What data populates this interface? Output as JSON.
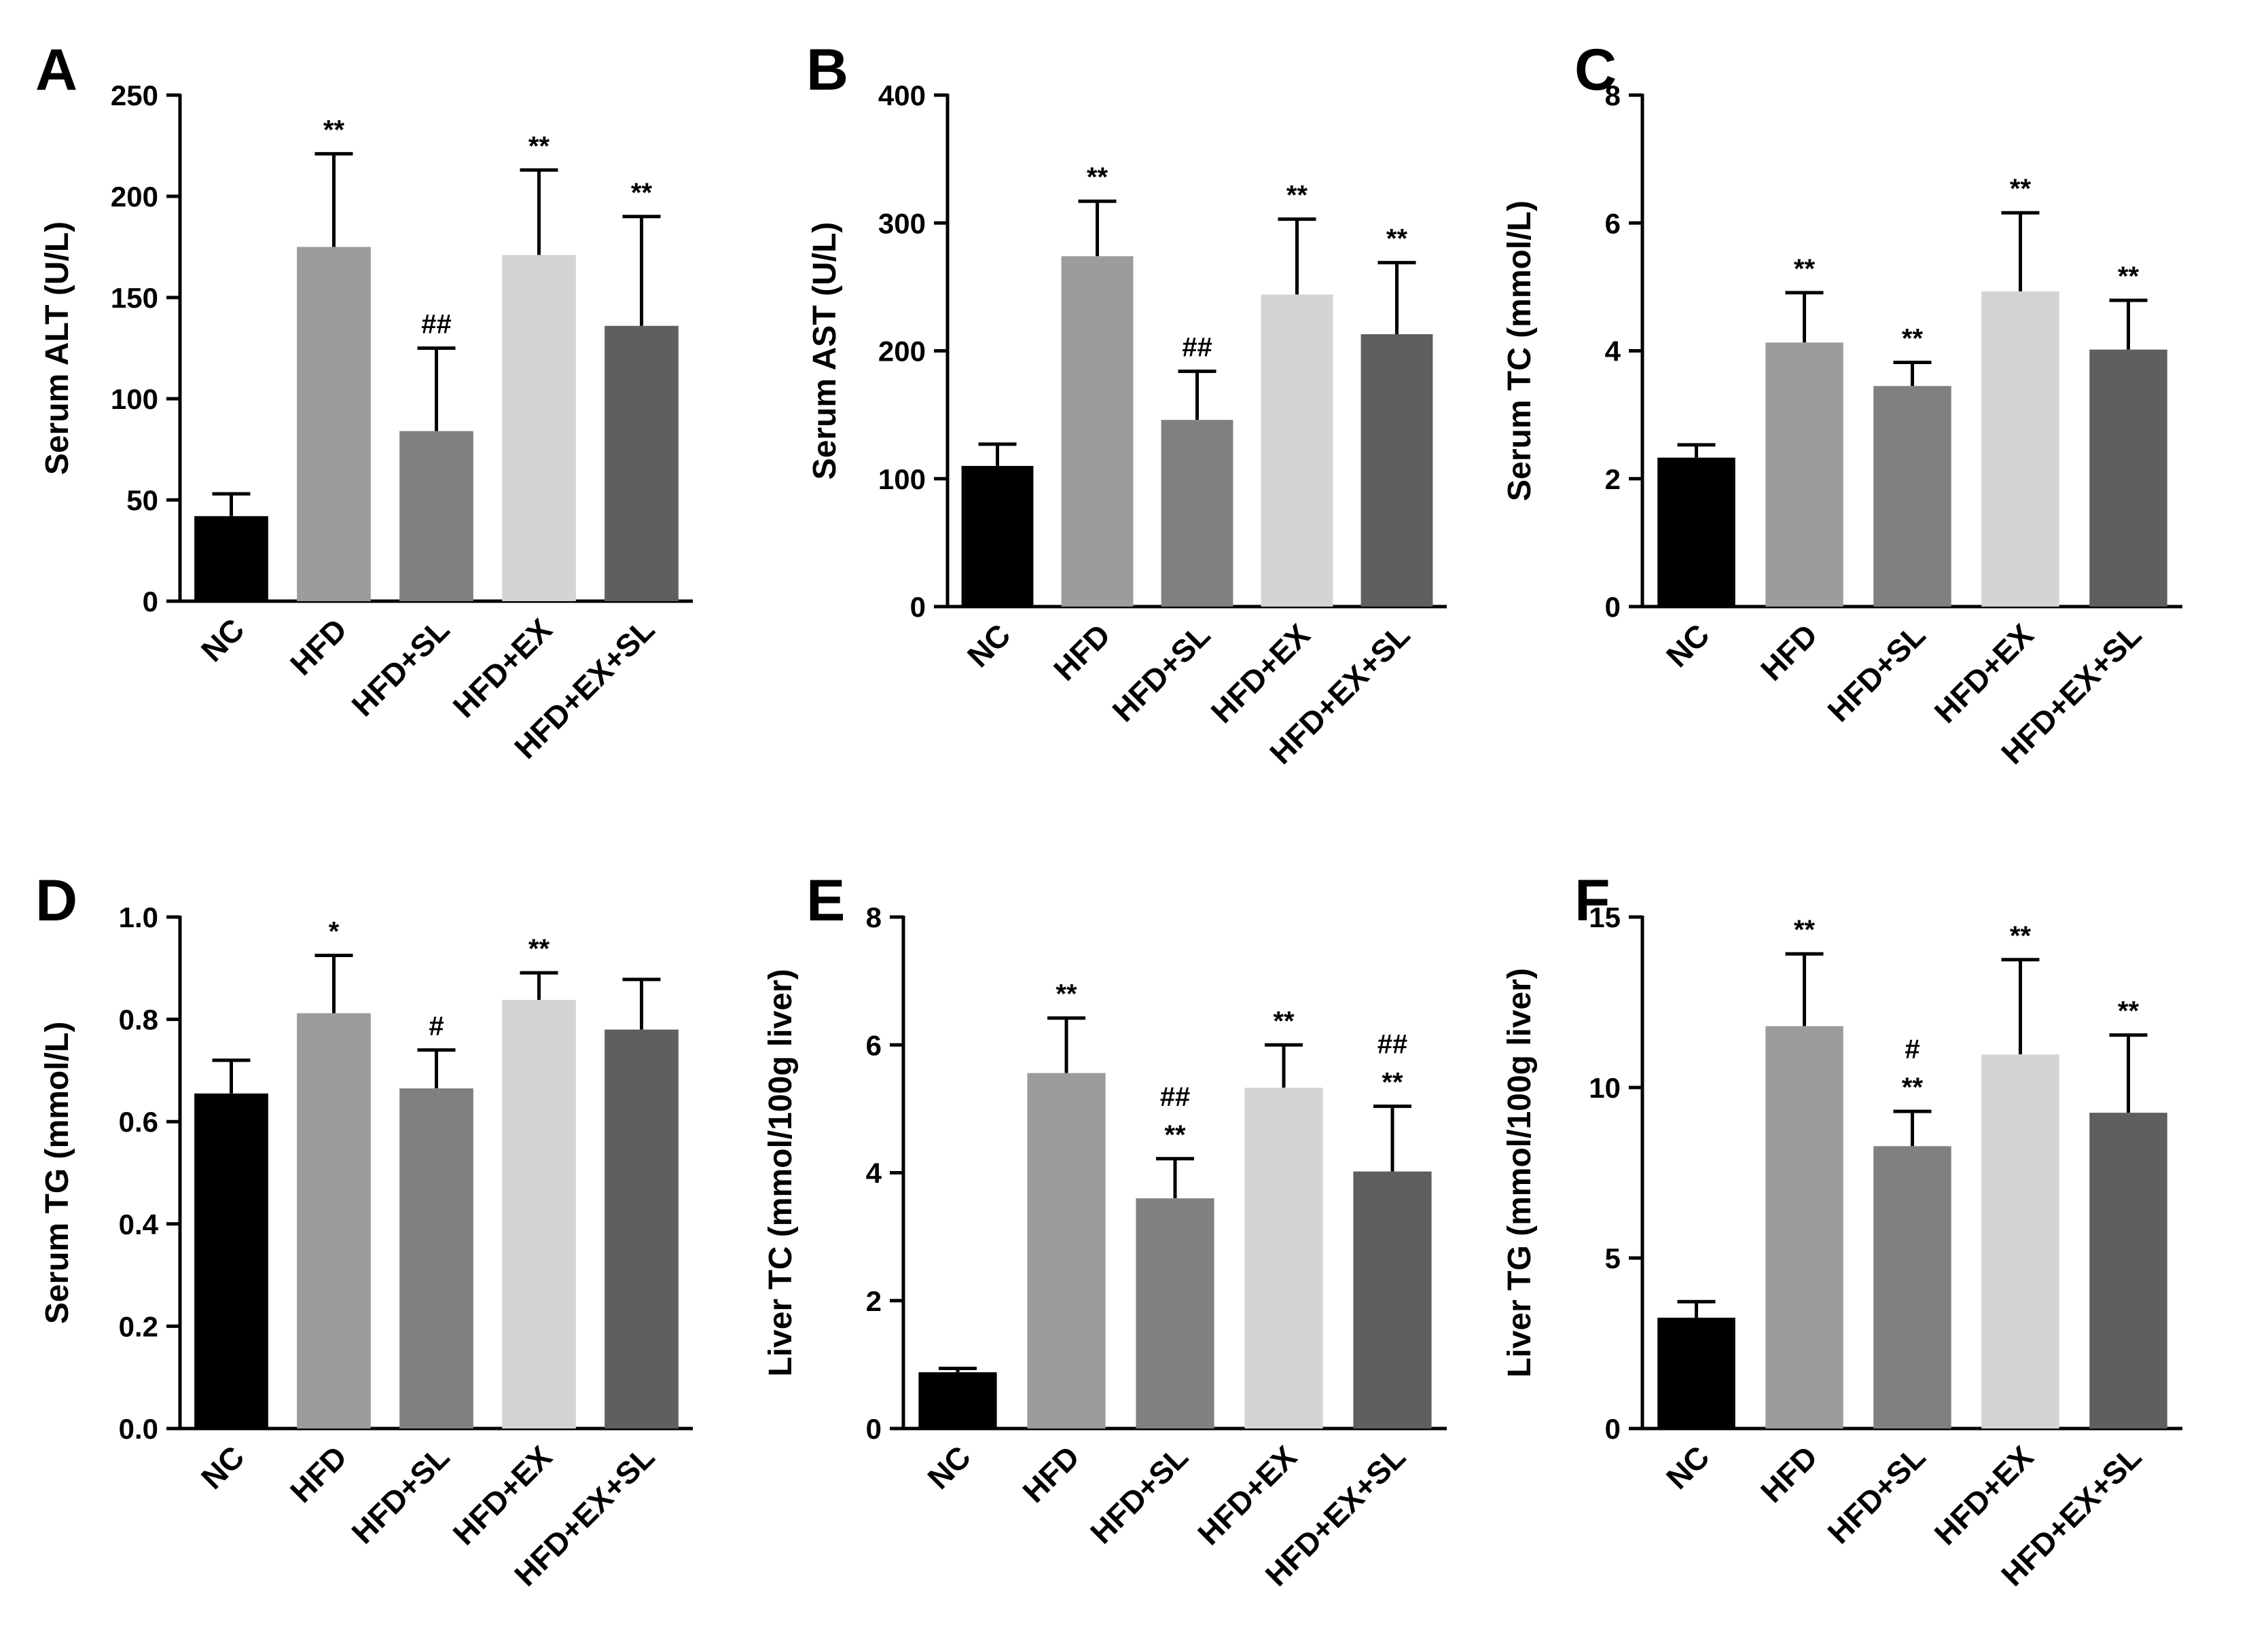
{
  "colors": {
    "axis": "#000000",
    "bar_NC": "#000000",
    "bar_HFD": "#9c9c9c",
    "bar_HFD_SL": "#808080",
    "bar_HFD_EX": "#d4d4d4",
    "bar_HFD_EX_SL": "#5f5f5f"
  },
  "chart_data": [
    {
      "panel": "A",
      "type": "bar",
      "ylabel": "Serum ALT (U/L)",
      "ylim": [
        0,
        250
      ],
      "ticks": [
        0,
        50,
        100,
        150,
        200,
        250
      ],
      "tick_labels": [
        "0",
        "50",
        "100",
        "150",
        "200",
        "250"
      ],
      "categories": [
        "NC",
        "HFD",
        "HFD+SL",
        "HFD+EX",
        "HFD+EX+SL"
      ],
      "values": [
        42,
        175,
        84,
        171,
        136
      ],
      "errors": [
        11,
        46,
        41,
        42,
        54
      ],
      "annotations": [
        "",
        "**",
        "##",
        "**",
        "**"
      ]
    },
    {
      "panel": "B",
      "type": "bar",
      "ylabel": "Serum AST (U/L)",
      "ylim": [
        0,
        400
      ],
      "ticks": [
        0,
        100,
        200,
        300,
        400
      ],
      "tick_labels": [
        "0",
        "100",
        "200",
        "300",
        "400"
      ],
      "categories": [
        "NC",
        "HFD",
        "HFD+SL",
        "HFD+EX",
        "HFD+EX+SL"
      ],
      "values": [
        110,
        274,
        146,
        244,
        213
      ],
      "errors": [
        17,
        43,
        38,
        59,
        56
      ],
      "annotations": [
        "",
        "**",
        "##",
        "**",
        "**"
      ]
    },
    {
      "panel": "C",
      "type": "bar",
      "ylabel": "Serum TC (mmol/L)",
      "ylim": [
        0,
        8
      ],
      "ticks": [
        0,
        2,
        4,
        6,
        8
      ],
      "tick_labels": [
        "0",
        "2",
        "4",
        "6",
        "8"
      ],
      "categories": [
        "NC",
        "HFD",
        "HFD+SL",
        "HFD+EX",
        "HFD+EX+SL"
      ],
      "values": [
        2.33,
        4.13,
        3.45,
        4.93,
        4.02
      ],
      "errors": [
        0.2,
        0.78,
        0.37,
        1.23,
        0.77
      ],
      "annotations": [
        "",
        "**",
        "**",
        "**",
        "**"
      ]
    },
    {
      "panel": "D",
      "type": "bar",
      "ylabel": "Serum TG (mmol/L)",
      "ylim": [
        0,
        1.0
      ],
      "ticks": [
        0,
        0.2,
        0.4,
        0.6,
        0.8,
        1.0
      ],
      "tick_labels": [
        "0.0",
        "0.2",
        "0.4",
        "0.6",
        "0.8",
        "1.0"
      ],
      "categories": [
        "NC",
        "HFD",
        "HFD+SL",
        "HFD+EX",
        "HFD+EX+SL"
      ],
      "values": [
        0.655,
        0.812,
        0.665,
        0.838,
        0.78
      ],
      "errors": [
        0.065,
        0.113,
        0.075,
        0.053,
        0.098
      ],
      "annotations": [
        "",
        "*",
        "#",
        "**",
        ""
      ]
    },
    {
      "panel": "E",
      "type": "bar",
      "ylabel": "Liver TC (mmol/100g liver)",
      "ylim": [
        0,
        8
      ],
      "ticks": [
        0,
        2,
        4,
        6,
        8
      ],
      "tick_labels": [
        "0",
        "2",
        "4",
        "6",
        "8"
      ],
      "categories": [
        "NC",
        "HFD",
        "HFD+SL",
        "HFD+EX",
        "HFD+EX+SL"
      ],
      "values": [
        0.88,
        5.56,
        3.6,
        5.33,
        4.02
      ],
      "errors": [
        0.06,
        0.86,
        0.62,
        0.67,
        1.02
      ],
      "annotations": [
        "",
        "**",
        "##\n**",
        "**",
        "##\n**"
      ]
    },
    {
      "panel": "F",
      "type": "bar",
      "ylabel": "Liver TG (mmol/100g liver)",
      "ylim": [
        0,
        15
      ],
      "ticks": [
        0,
        5,
        10,
        15
      ],
      "tick_labels": [
        "0",
        "5",
        "10",
        "15"
      ],
      "categories": [
        "NC",
        "HFD",
        "HFD+SL",
        "HFD+EX",
        "HFD+EX+SL"
      ],
      "values": [
        3.25,
        11.8,
        8.28,
        10.97,
        9.26
      ],
      "errors": [
        0.47,
        2.12,
        1.02,
        2.78,
        2.28
      ],
      "annotations": [
        "",
        "**",
        "#\n**",
        "**",
        "**"
      ]
    }
  ]
}
